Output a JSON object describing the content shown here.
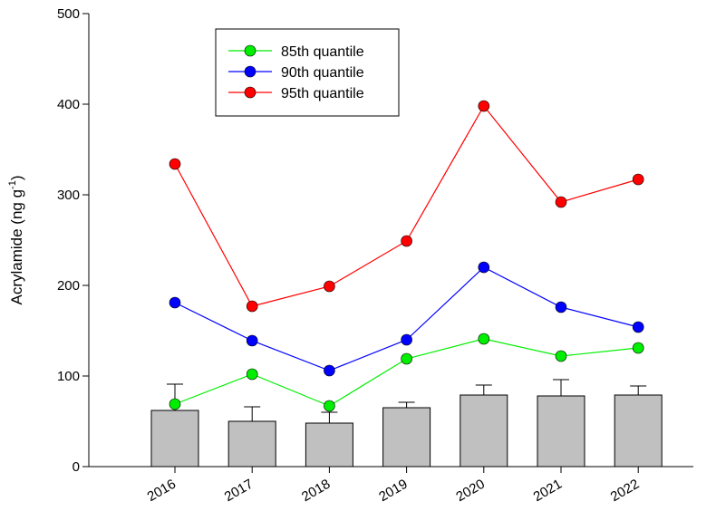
{
  "chart_data": {
    "type": "bar+line",
    "categories": [
      "2016",
      "2017",
      "2018",
      "2019",
      "2020",
      "2021",
      "2022"
    ],
    "bars": {
      "values": [
        62,
        50,
        48,
        65,
        79,
        78,
        79
      ],
      "errors": [
        29,
        16,
        12,
        6,
        11,
        18,
        10
      ],
      "color": "#c0c0c0"
    },
    "series": [
      {
        "name": "85th quantile",
        "color": "#00ee00",
        "values": [
          69,
          102,
          67,
          119,
          141,
          122,
          131
        ]
      },
      {
        "name": "90th quantile",
        "color": "#0000ff",
        "values": [
          181,
          139,
          106,
          140,
          220,
          176,
          154
        ]
      },
      {
        "name": "95th quantile",
        "color": "#ff0000",
        "values": [
          334,
          177,
          199,
          249,
          398,
          292,
          317
        ]
      }
    ],
    "ylabel": "Acrylamide (ng g",
    "ylabel_sup": "-1",
    "ylabel_close": ")",
    "ylim": [
      0,
      500
    ],
    "yticks": [
      0,
      100,
      200,
      300,
      400,
      500
    ],
    "legend_position": "top-left",
    "grid": false
  }
}
